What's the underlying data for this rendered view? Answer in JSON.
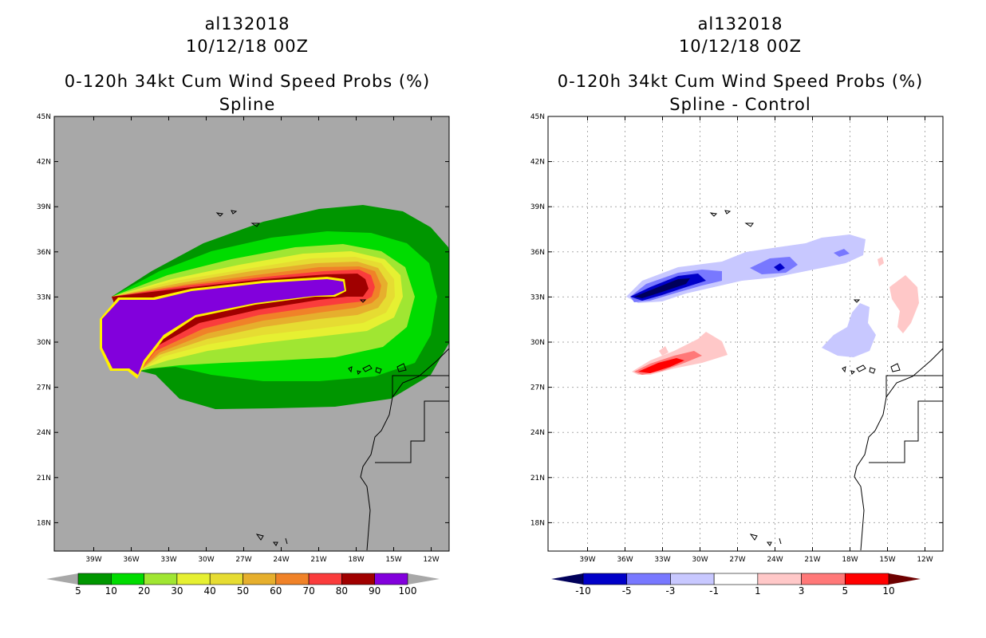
{
  "panels": [
    {
      "storm_id": "al132018",
      "datetime": "10/12/18 00Z",
      "product": "0-120h 34kt Cum Wind Speed Probs (%)",
      "subtitle": "Spline",
      "background_color": "#a8a8a8",
      "colorbar": {
        "labels": [
          "5",
          "10",
          "20",
          "30",
          "40",
          "50",
          "60",
          "70",
          "80",
          "90",
          "100"
        ],
        "colors": [
          "#009600",
          "#00dc00",
          "#a0e632",
          "#e6f032",
          "#e6dc32",
          "#e6af2d",
          "#f08228",
          "#fa3c3c",
          "#a00000",
          "#8200dc"
        ],
        "end_color": "#a8a8a8"
      }
    },
    {
      "storm_id": "al132018",
      "datetime": "10/12/18 00Z",
      "product": "0-120h 34kt Cum Wind Speed Probs (%)",
      "subtitle": "Spline - Control",
      "background_color": "#ffffff",
      "colorbar": {
        "labels": [
          "-10",
          "-5",
          "-3",
          "-1",
          "1",
          "3",
          "5",
          "10"
        ],
        "colors": [
          "#0000c8",
          "#7878ff",
          "#c8c8ff",
          "#ffffff",
          "#ffc8c8",
          "#ff7878",
          "#ff0000"
        ],
        "left_end_color": "#00005a",
        "right_end_color": "#6e0000"
      }
    }
  ],
  "map": {
    "lat_labels": [
      "45N",
      "42N",
      "39N",
      "36N",
      "33N",
      "30N",
      "27N",
      "24N",
      "21N",
      "18N"
    ],
    "lon_labels": [
      "39W",
      "36W",
      "33W",
      "30W",
      "27W",
      "24W",
      "21W",
      "18W",
      "15W",
      "12W"
    ]
  }
}
